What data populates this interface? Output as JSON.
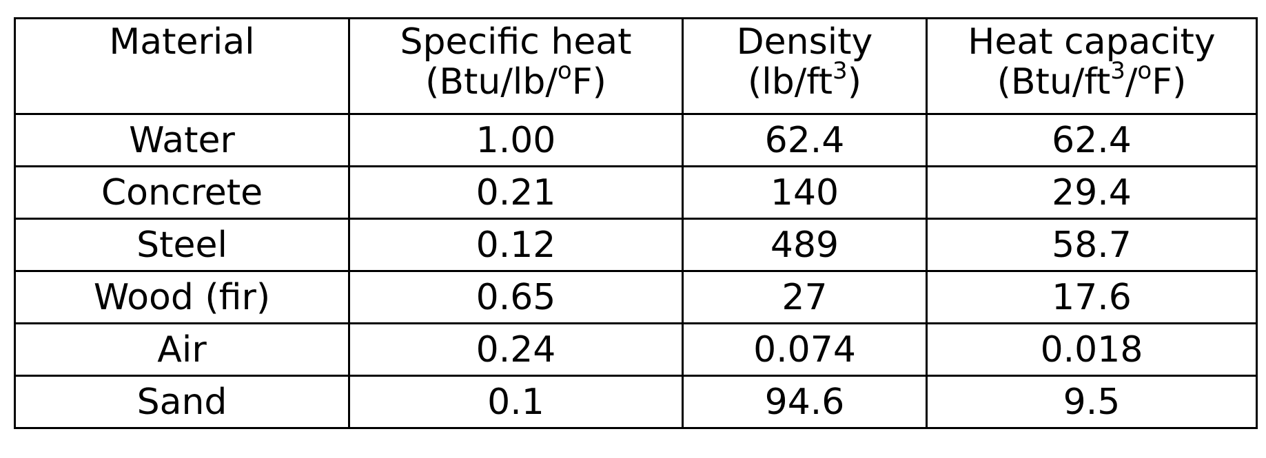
{
  "table": {
    "headers": [
      {
        "line1": "Material",
        "line2": ""
      },
      {
        "line1": "Specific heat",
        "line2_pre": "(Btu/lb/",
        "line2_sup": "o",
        "line2_post": "F)"
      },
      {
        "line1": "Density",
        "line2_pre": "(lb/ft",
        "line2_sup": "3",
        "line2_post": ")"
      },
      {
        "line1": "Heat capacity",
        "line2_pre": "(Btu/ft",
        "line2_sup": "3",
        "line2_mid": "/",
        "line2_sup2": "o",
        "line2_post": "F)"
      }
    ],
    "rows": [
      [
        "Water",
        "1.00",
        "62.4",
        "62.4"
      ],
      [
        "Concrete",
        "0.21",
        "140",
        "29.4"
      ],
      [
        "Steel",
        "0.12",
        "489",
        "58.7"
      ],
      [
        "Wood (fir)",
        "0.65",
        "27",
        "17.6"
      ],
      [
        "Air",
        "0.24",
        "0.074",
        "0.018"
      ],
      [
        "Sand",
        "0.1",
        "94.6",
        "9.5"
      ]
    ]
  }
}
